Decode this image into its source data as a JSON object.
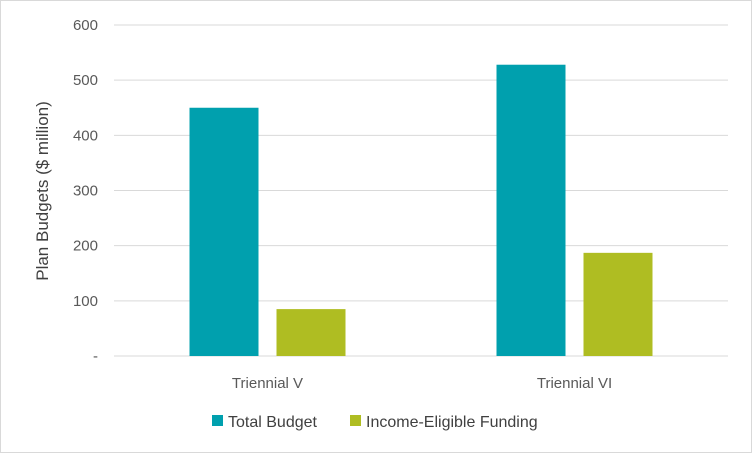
{
  "chart_data": {
    "type": "bar",
    "title": "",
    "xlabel": "",
    "ylabel": "Plan Budgets ($ million)",
    "categories": [
      "Triennial V",
      "Triennial VI"
    ],
    "series": [
      {
        "name": "Total Budget",
        "color": "#00a0ae",
        "values": [
          450,
          528
        ]
      },
      {
        "name": "Income-Eligible Funding",
        "color": "#afbd22",
        "values": [
          85,
          187
        ]
      }
    ],
    "ylim": [
      0,
      600
    ],
    "yticks": [
      {
        "value": 0,
        "label": "-"
      },
      {
        "value": 100,
        "label": "100"
      },
      {
        "value": 200,
        "label": "200"
      },
      {
        "value": 300,
        "label": "300"
      },
      {
        "value": 400,
        "label": "400"
      },
      {
        "value": 500,
        "label": "500"
      },
      {
        "value": 600,
        "label": "600"
      }
    ],
    "grid": true,
    "legend": "bottom"
  }
}
